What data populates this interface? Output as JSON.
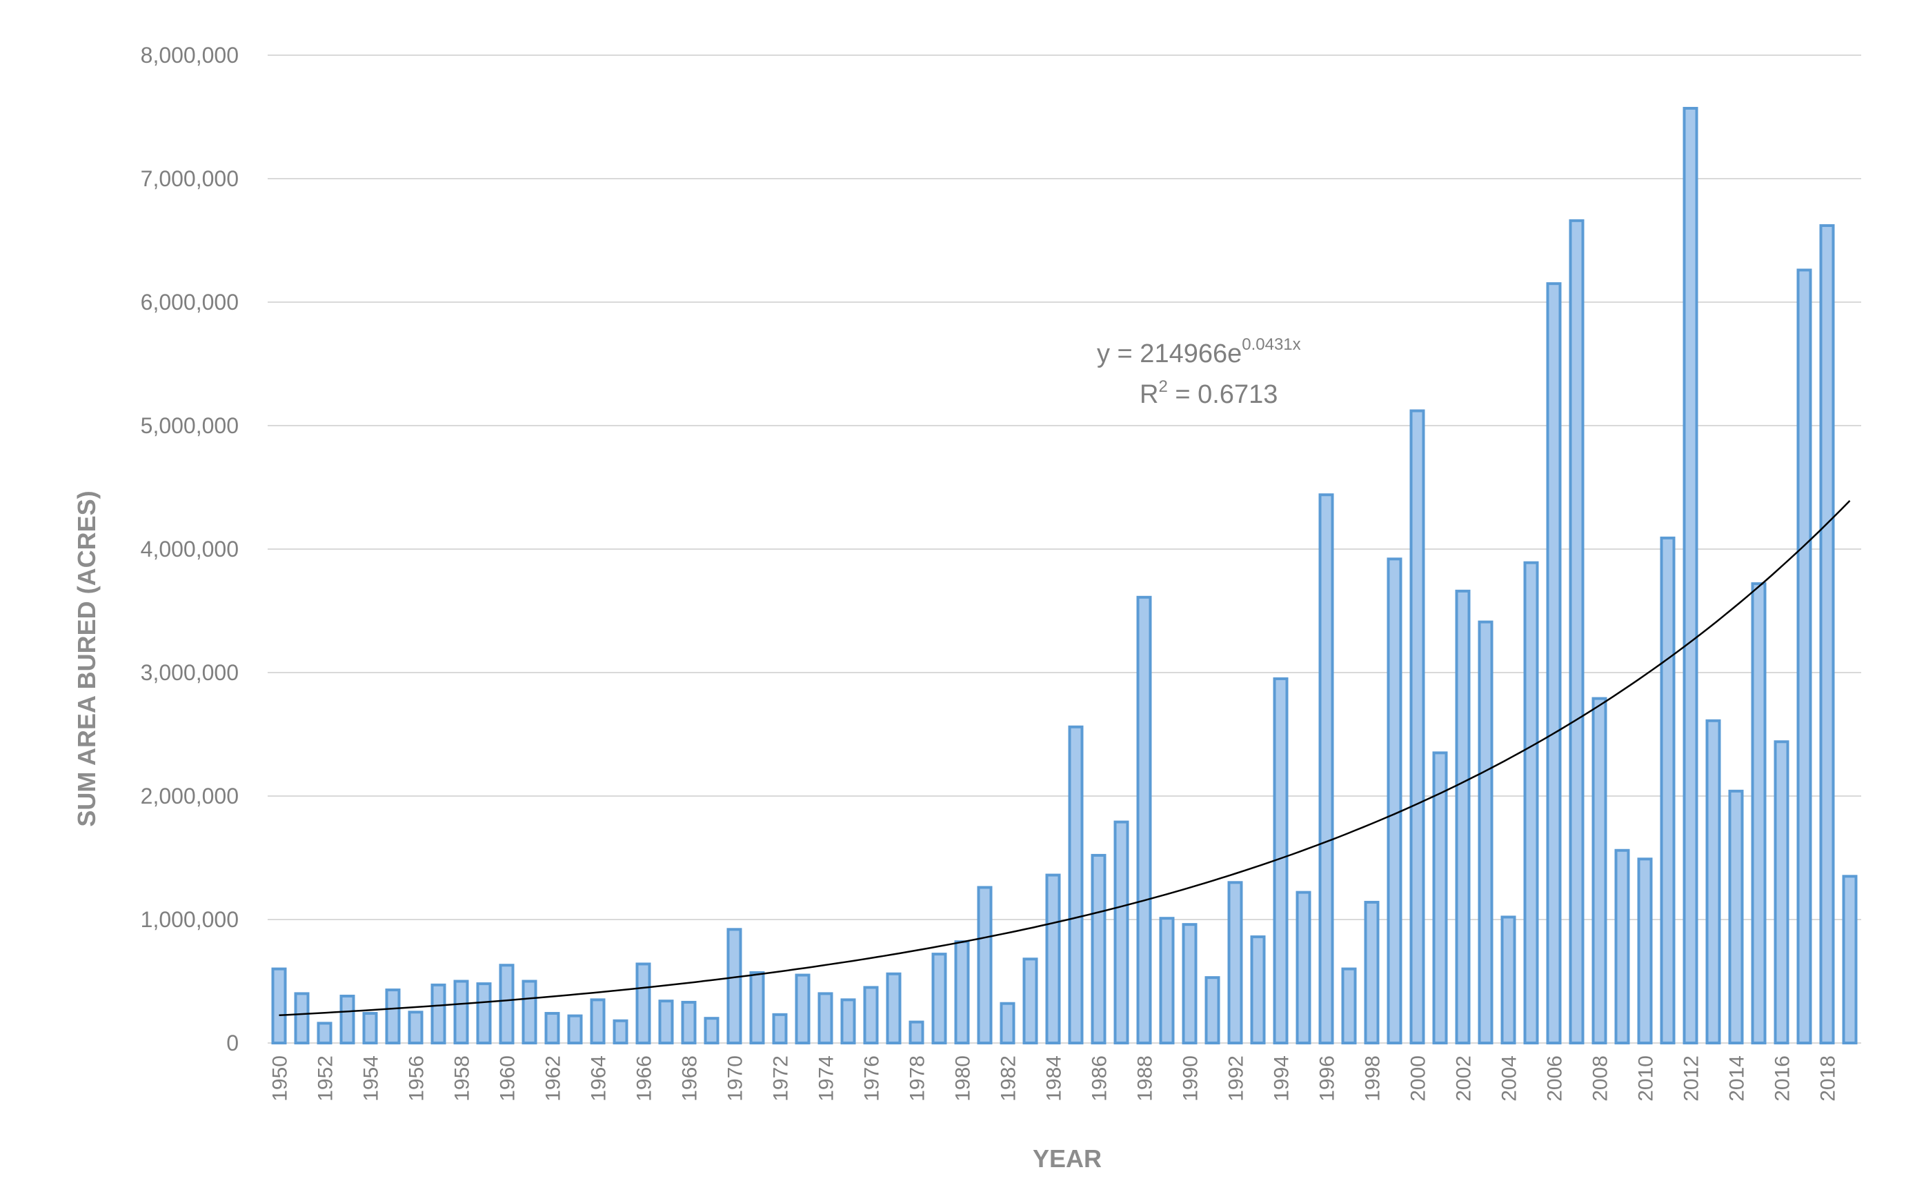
{
  "chart_data": {
    "type": "bar",
    "xlabel": "YEAR",
    "ylabel": "SUM AREA BURED (ACRES)",
    "ylim": [
      0,
      8000000
    ],
    "yticks": [
      "0",
      "1,000,000",
      "2,000,000",
      "3,000,000",
      "4,000,000",
      "5,000,000",
      "6,000,000",
      "7,000,000",
      "8,000,000"
    ],
    "grid": true,
    "categories": [
      1950,
      1951,
      1952,
      1953,
      1954,
      1955,
      1956,
      1957,
      1958,
      1959,
      1960,
      1961,
      1962,
      1963,
      1964,
      1965,
      1966,
      1967,
      1968,
      1969,
      1970,
      1971,
      1972,
      1973,
      1974,
      1975,
      1976,
      1977,
      1978,
      1979,
      1980,
      1981,
      1982,
      1983,
      1984,
      1985,
      1986,
      1987,
      1988,
      1989,
      1990,
      1991,
      1992,
      1993,
      1994,
      1995,
      1996,
      1997,
      1998,
      1999,
      2000,
      2001,
      2002,
      2003,
      2004,
      2005,
      2006,
      2007,
      2008,
      2009,
      2010,
      2011,
      2012,
      2013,
      2014,
      2015,
      2016,
      2017,
      2018,
      2019
    ],
    "xtick_labels": [
      "1950",
      "1952",
      "1954",
      "1956",
      "1958",
      "1960",
      "1962",
      "1964",
      "1966",
      "1968",
      "1970",
      "1972",
      "1974",
      "1976",
      "1978",
      "1980",
      "1982",
      "1984",
      "1986",
      "1988",
      "1990",
      "1992",
      "1994",
      "1996",
      "1998",
      "2000",
      "2002",
      "2004",
      "2006",
      "2008",
      "2010",
      "2012",
      "2014",
      "2016",
      "2018"
    ],
    "values": [
      600000,
      400000,
      160000,
      380000,
      240000,
      430000,
      250000,
      470000,
      500000,
      480000,
      630000,
      500000,
      240000,
      220000,
      350000,
      180000,
      640000,
      340000,
      330000,
      200000,
      920000,
      570000,
      230000,
      550000,
      400000,
      350000,
      450000,
      560000,
      170000,
      720000,
      820000,
      1260000,
      320000,
      680000,
      1360000,
      2560000,
      1520000,
      1790000,
      3610000,
      1010000,
      960000,
      530000,
      1300000,
      860000,
      2950000,
      1220000,
      4440000,
      600000,
      1140000,
      3920000,
      5120000,
      2350000,
      3660000,
      3410000,
      1020000,
      3890000,
      6150000,
      6660000,
      2790000,
      1560000,
      1490000,
      4090000,
      7570000,
      2610000,
      2040000,
      3720000,
      2440000,
      6260000,
      6620000,
      1350000
    ],
    "trendline": {
      "type": "exponential",
      "equation_prefix": "y = 214966e",
      "equation_exponent": "0.0431x",
      "r2_prefix": "R",
      "r2_sup": "2",
      "r2_value": " = 0.6713",
      "a": 214966,
      "b": 0.0431
    },
    "colors": {
      "bar_fill": "#a6c8ec",
      "bar_stroke": "#5b9bd5",
      "grid": "#d9d9d9",
      "trend": "#000000",
      "text": "#7f7f7f"
    }
  }
}
